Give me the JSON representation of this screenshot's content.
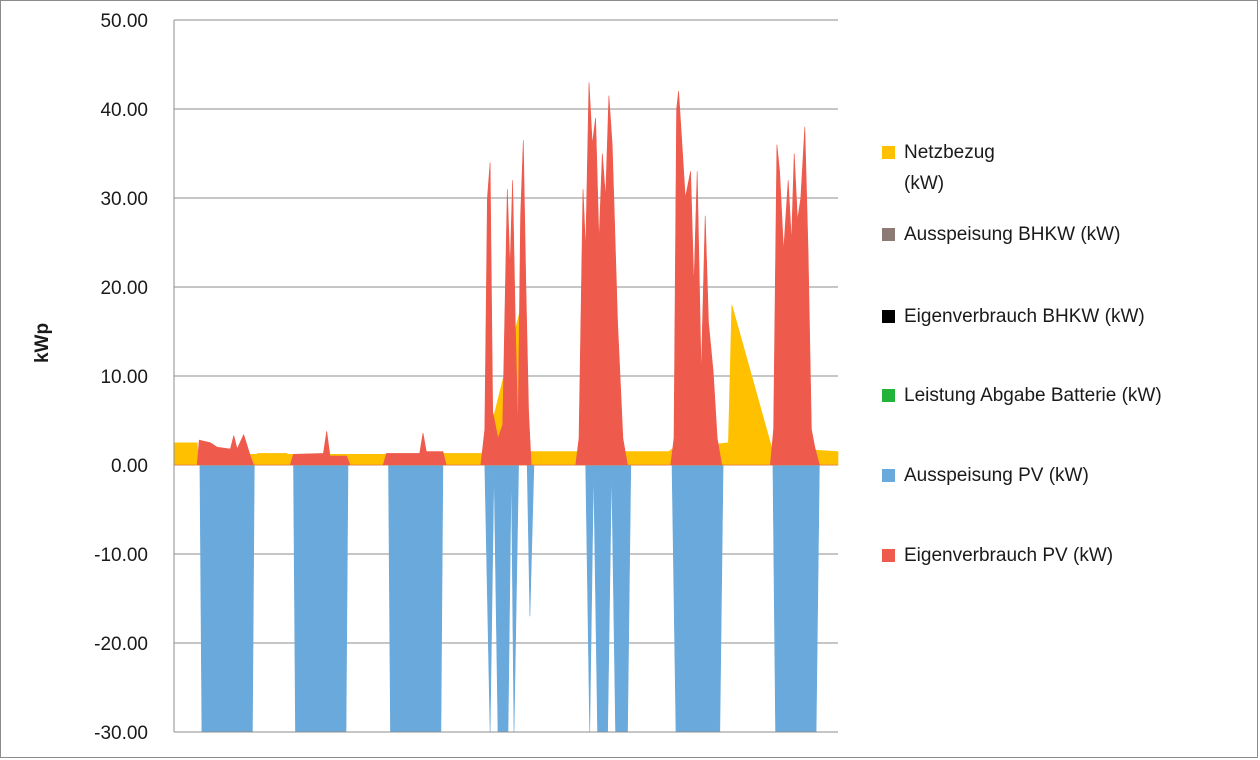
{
  "chart_data": {
    "type": "area",
    "ylabel": "kWp",
    "xlabel": "",
    "ylim": [
      -30,
      50
    ],
    "yticks": [
      "50.00",
      "40.00",
      "30.00",
      "20.00",
      "10.00",
      "0.00",
      "-10.00",
      "-20.00",
      "-30.00"
    ],
    "ytick_values": [
      50,
      40,
      30,
      20,
      10,
      0,
      -10,
      -20,
      -30
    ],
    "grid": "horizontal",
    "legend_position": "right",
    "x_domain": [
      0,
      100
    ],
    "series": [
      {
        "name": "Netzbezug (kW)",
        "label_lines": [
          "Netzbezug",
          "(kW)"
        ],
        "color": "#ffc000",
        "points": [
          [
            0,
            2.5
          ],
          [
            3.5,
            2.5
          ],
          [
            3.6,
            1.2
          ],
          [
            12.5,
            1.2
          ],
          [
            12.6,
            1.3
          ],
          [
            17,
            1.3
          ],
          [
            17.1,
            1.2
          ],
          [
            40.5,
            1.2
          ],
          [
            40.6,
            1.3
          ],
          [
            46.5,
            1.3
          ],
          [
            47.0,
            2.0
          ],
          [
            52.0,
            17.0
          ],
          [
            53.0,
            1.5
          ],
          [
            60.5,
            1.5
          ],
          [
            61.0,
            1.5
          ],
          [
            74.5,
            1.5
          ],
          [
            75.0,
            1.8
          ],
          [
            83.5,
            2.5
          ],
          [
            84.0,
            18.0
          ],
          [
            90,
            2.0
          ],
          [
            100,
            1.5
          ]
        ]
      },
      {
        "name": "Ausspeisung BHKW (kW)",
        "label_lines": [
          "Ausspeisung BHKW (kW)"
        ],
        "color": "#8c7b75",
        "points": []
      },
      {
        "name": "Eigenverbrauch BHKW (kW)",
        "label_lines": [
          "Eigenverbrauch BHKW (kW)"
        ],
        "color": "#000000",
        "points": []
      },
      {
        "name": "Leistung Abgabe Batterie (kW)",
        "label_lines": [
          "Leistung Abgabe Batterie (kW)"
        ],
        "color": "#22b33a",
        "points": []
      },
      {
        "name": "Ausspeisung PV (kW)",
        "label_lines": [
          "Ausspeisung PV (kW)"
        ],
        "color": "#6aa9db",
        "points": [
          [
            0,
            0
          ],
          [
            3.9,
            0
          ],
          [
            4.2,
            -30
          ],
          [
            11.8,
            -30
          ],
          [
            12.1,
            0
          ],
          [
            18.0,
            0
          ],
          [
            18.3,
            -30
          ],
          [
            25.9,
            -30
          ],
          [
            26.2,
            0
          ],
          [
            32.3,
            0
          ],
          [
            32.6,
            -30
          ],
          [
            40.2,
            -30
          ],
          [
            40.5,
            0
          ],
          [
            46.8,
            0
          ],
          [
            47.6,
            -30
          ],
          [
            48.2,
            0
          ],
          [
            48.8,
            -30
          ],
          [
            50.3,
            -30
          ],
          [
            50.8,
            0
          ],
          [
            51.2,
            -30
          ],
          [
            51.9,
            0
          ],
          [
            53.2,
            0
          ],
          [
            53.6,
            -17
          ],
          [
            54.2,
            0
          ],
          [
            62.0,
            0
          ],
          [
            62.6,
            -30
          ],
          [
            63.2,
            0
          ],
          [
            63.8,
            -30
          ],
          [
            65.3,
            -30
          ],
          [
            65.9,
            0
          ],
          [
            66.5,
            -30
          ],
          [
            68.3,
            -30
          ],
          [
            68.8,
            0
          ],
          [
            75.0,
            0
          ],
          [
            75.6,
            -30
          ],
          [
            82.2,
            -30
          ],
          [
            82.7,
            0
          ],
          [
            90.2,
            0
          ],
          [
            90.6,
            -30
          ],
          [
            96.7,
            -30
          ],
          [
            97.2,
            0
          ],
          [
            100,
            0
          ]
        ]
      },
      {
        "name": "Eigenverbrauch PV (kW)",
        "label_lines": [
          "Eigenverbrauch PV (kW)"
        ],
        "color": "#ee5a4c",
        "points": [
          [
            0,
            0
          ],
          [
            3.5,
            0
          ],
          [
            3.8,
            2.8
          ],
          [
            5.5,
            2.5
          ],
          [
            6.5,
            2.0
          ],
          [
            8.5,
            1.8
          ],
          [
            9.0,
            3.3
          ],
          [
            9.5,
            1.8
          ],
          [
            10.5,
            3.4
          ],
          [
            11.5,
            1.0
          ],
          [
            12.0,
            0
          ],
          [
            17.5,
            0
          ],
          [
            18.0,
            1.2
          ],
          [
            22.5,
            1.3
          ],
          [
            23.0,
            3.8
          ],
          [
            23.5,
            1.0
          ],
          [
            26.0,
            1.0
          ],
          [
            26.5,
            0
          ],
          [
            31.5,
            0
          ],
          [
            32.0,
            1.3
          ],
          [
            37.0,
            1.3
          ],
          [
            37.5,
            3.6
          ],
          [
            38.0,
            1.5
          ],
          [
            40.5,
            1.5
          ],
          [
            41.0,
            0
          ],
          [
            46.2,
            0
          ],
          [
            46.8,
            4.0
          ],
          [
            47.2,
            30.0
          ],
          [
            47.6,
            34.0
          ],
          [
            48.0,
            6.0
          ],
          [
            48.8,
            3.0
          ],
          [
            49.5,
            4.5
          ],
          [
            50.2,
            31.0
          ],
          [
            50.6,
            22.0
          ],
          [
            51.0,
            32.0
          ],
          [
            51.4,
            16.0
          ],
          [
            51.8,
            3.5
          ],
          [
            52.2,
            28.0
          ],
          [
            52.6,
            36.5
          ],
          [
            53.0,
            20.0
          ],
          [
            53.4,
            6.0
          ],
          [
            53.8,
            0
          ],
          [
            60.5,
            0
          ],
          [
            61.0,
            3.0
          ],
          [
            61.6,
            31.0
          ],
          [
            62.0,
            24.0
          ],
          [
            62.5,
            43.0
          ],
          [
            63.0,
            36.0
          ],
          [
            63.5,
            39.0
          ],
          [
            64.0,
            25.0
          ],
          [
            64.5,
            35.0
          ],
          [
            65.0,
            30.0
          ],
          [
            65.5,
            41.5
          ],
          [
            66.0,
            36.0
          ],
          [
            66.8,
            16.0
          ],
          [
            67.6,
            3.0
          ],
          [
            68.3,
            0
          ],
          [
            74.8,
            0
          ],
          [
            75.3,
            3.0
          ],
          [
            75.7,
            40.0
          ],
          [
            76.0,
            42.0
          ],
          [
            76.5,
            36.0
          ],
          [
            77.0,
            30.0
          ],
          [
            77.8,
            33.0
          ],
          [
            78.3,
            20.0
          ],
          [
            78.8,
            33.0
          ],
          [
            79.4,
            10.0
          ],
          [
            80.0,
            28.0
          ],
          [
            80.5,
            16.0
          ],
          [
            81.2,
            10.5
          ],
          [
            81.8,
            3.0
          ],
          [
            82.5,
            0
          ],
          [
            89.8,
            0
          ],
          [
            90.3,
            4.0
          ],
          [
            90.8,
            36.0
          ],
          [
            91.2,
            33.0
          ],
          [
            91.8,
            24.0
          ],
          [
            92.5,
            32.0
          ],
          [
            93.0,
            25.0
          ],
          [
            93.4,
            35.0
          ],
          [
            93.9,
            27.5
          ],
          [
            94.4,
            30.0
          ],
          [
            95.0,
            38.0
          ],
          [
            95.5,
            24.0
          ],
          [
            96.0,
            4.0
          ],
          [
            96.5,
            2.0
          ],
          [
            97.2,
            0
          ],
          [
            100,
            0
          ]
        ]
      }
    ]
  }
}
